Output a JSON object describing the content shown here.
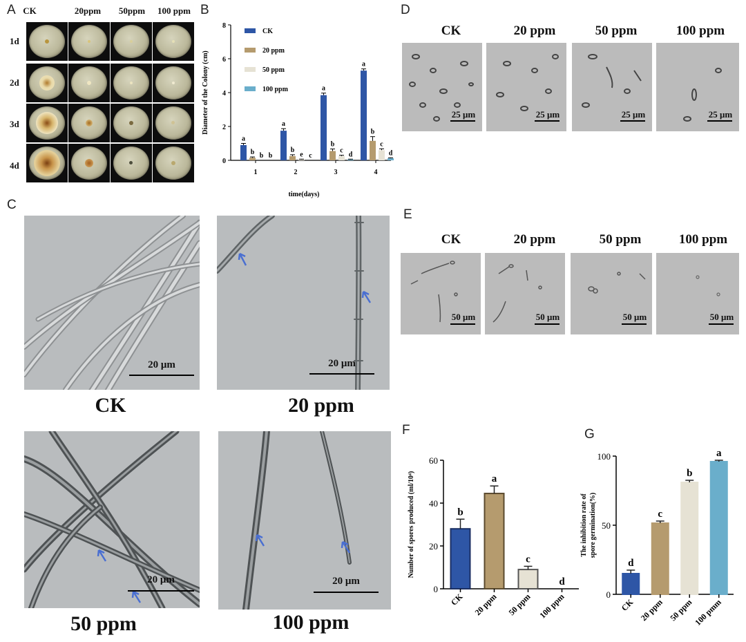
{
  "panels": {
    "a": "A",
    "b": "B",
    "c": "C",
    "d": "D",
    "e": "E",
    "f": "F",
    "g": "G"
  },
  "panelA": {
    "columns": [
      "CK",
      "20ppm",
      "50ppm",
      "100 ppm"
    ],
    "rows": [
      "1d",
      "2d",
      "3d",
      "4d"
    ]
  },
  "panelC": {
    "captions": [
      "CK",
      "20 ppm",
      "50 ppm",
      "100 ppm"
    ],
    "scale": "20 μm"
  },
  "panelD": {
    "headers": [
      "CK",
      "20 ppm",
      "50 ppm",
      "100 ppm"
    ],
    "scale": "25 μm"
  },
  "panelE": {
    "headers": [
      "CK",
      "20 ppm",
      "50 ppm",
      "100 ppm"
    ],
    "scale": "50 μm"
  },
  "colors": {
    "ck": "#2e56a6",
    "ppm20": "#b59b6e",
    "ppm50": "#e6e2d4",
    "ppm100": "#6aaecb"
  },
  "chart_data": [
    {
      "id": "B",
      "type": "bar",
      "xlabel": "time(days)",
      "ylabel": "Diameter of the Colony (cm)",
      "categories": [
        "1",
        "2",
        "3",
        "4"
      ],
      "ylim": [
        0,
        8
      ],
      "yticks": [
        "0",
        "2",
        "4",
        "6",
        "8"
      ],
      "legend": "top-left inside",
      "series": [
        {
          "name": "CK",
          "values": [
            0.9,
            1.75,
            3.85,
            5.3
          ],
          "errors": [
            0.1,
            0.12,
            0.12,
            0.1
          ],
          "letters": [
            "a",
            "a",
            "a",
            "a"
          ]
        },
        {
          "name": "20 ppm",
          "values": [
            0.15,
            0.25,
            0.55,
            1.15
          ],
          "errors": [
            0.05,
            0.08,
            0.12,
            0.25
          ],
          "letters": [
            "b",
            "b",
            "b",
            "b"
          ]
        },
        {
          "name": "50 ppm",
          "values": [
            0.0,
            0.05,
            0.25,
            0.6
          ],
          "errors": [
            0.0,
            0.02,
            0.05,
            0.08
          ],
          "letters": [
            "b",
            "e",
            "c",
            "c"
          ]
        },
        {
          "name": "100 ppm",
          "values": [
            0.0,
            0.0,
            0.05,
            0.12
          ],
          "errors": [
            0.0,
            0.0,
            0.02,
            0.03
          ],
          "letters": [
            "b",
            "c",
            "d",
            "d"
          ]
        }
      ]
    },
    {
      "id": "F",
      "type": "bar",
      "xlabel": "",
      "ylabel": "Number of spores produced (ml/10⁴)",
      "categories": [
        "CK",
        "20 ppm",
        "50 ppm",
        "100 ppm"
      ],
      "values": [
        28,
        44.5,
        9,
        0
      ],
      "errors": [
        4.5,
        3.5,
        1.5,
        0
      ],
      "letters": [
        "b",
        "a",
        "c",
        "d"
      ],
      "ylim": [
        0,
        60
      ],
      "yticks": [
        "0",
        "20",
        "40",
        "60"
      ]
    },
    {
      "id": "G",
      "type": "bar",
      "xlabel": "",
      "ylabel": "The inhibition rate of spore germination(%)",
      "categories": [
        "CK",
        "20 ppm",
        "50 ppm",
        "100 pmm"
      ],
      "values": [
        15,
        51.5,
        81,
        96
      ],
      "errors": [
        2.5,
        1.5,
        1.5,
        1
      ],
      "letters": [
        "d",
        "c",
        "b",
        "a"
      ],
      "ylim": [
        0,
        100
      ],
      "yticks": [
        "0",
        "50",
        "100"
      ]
    }
  ]
}
